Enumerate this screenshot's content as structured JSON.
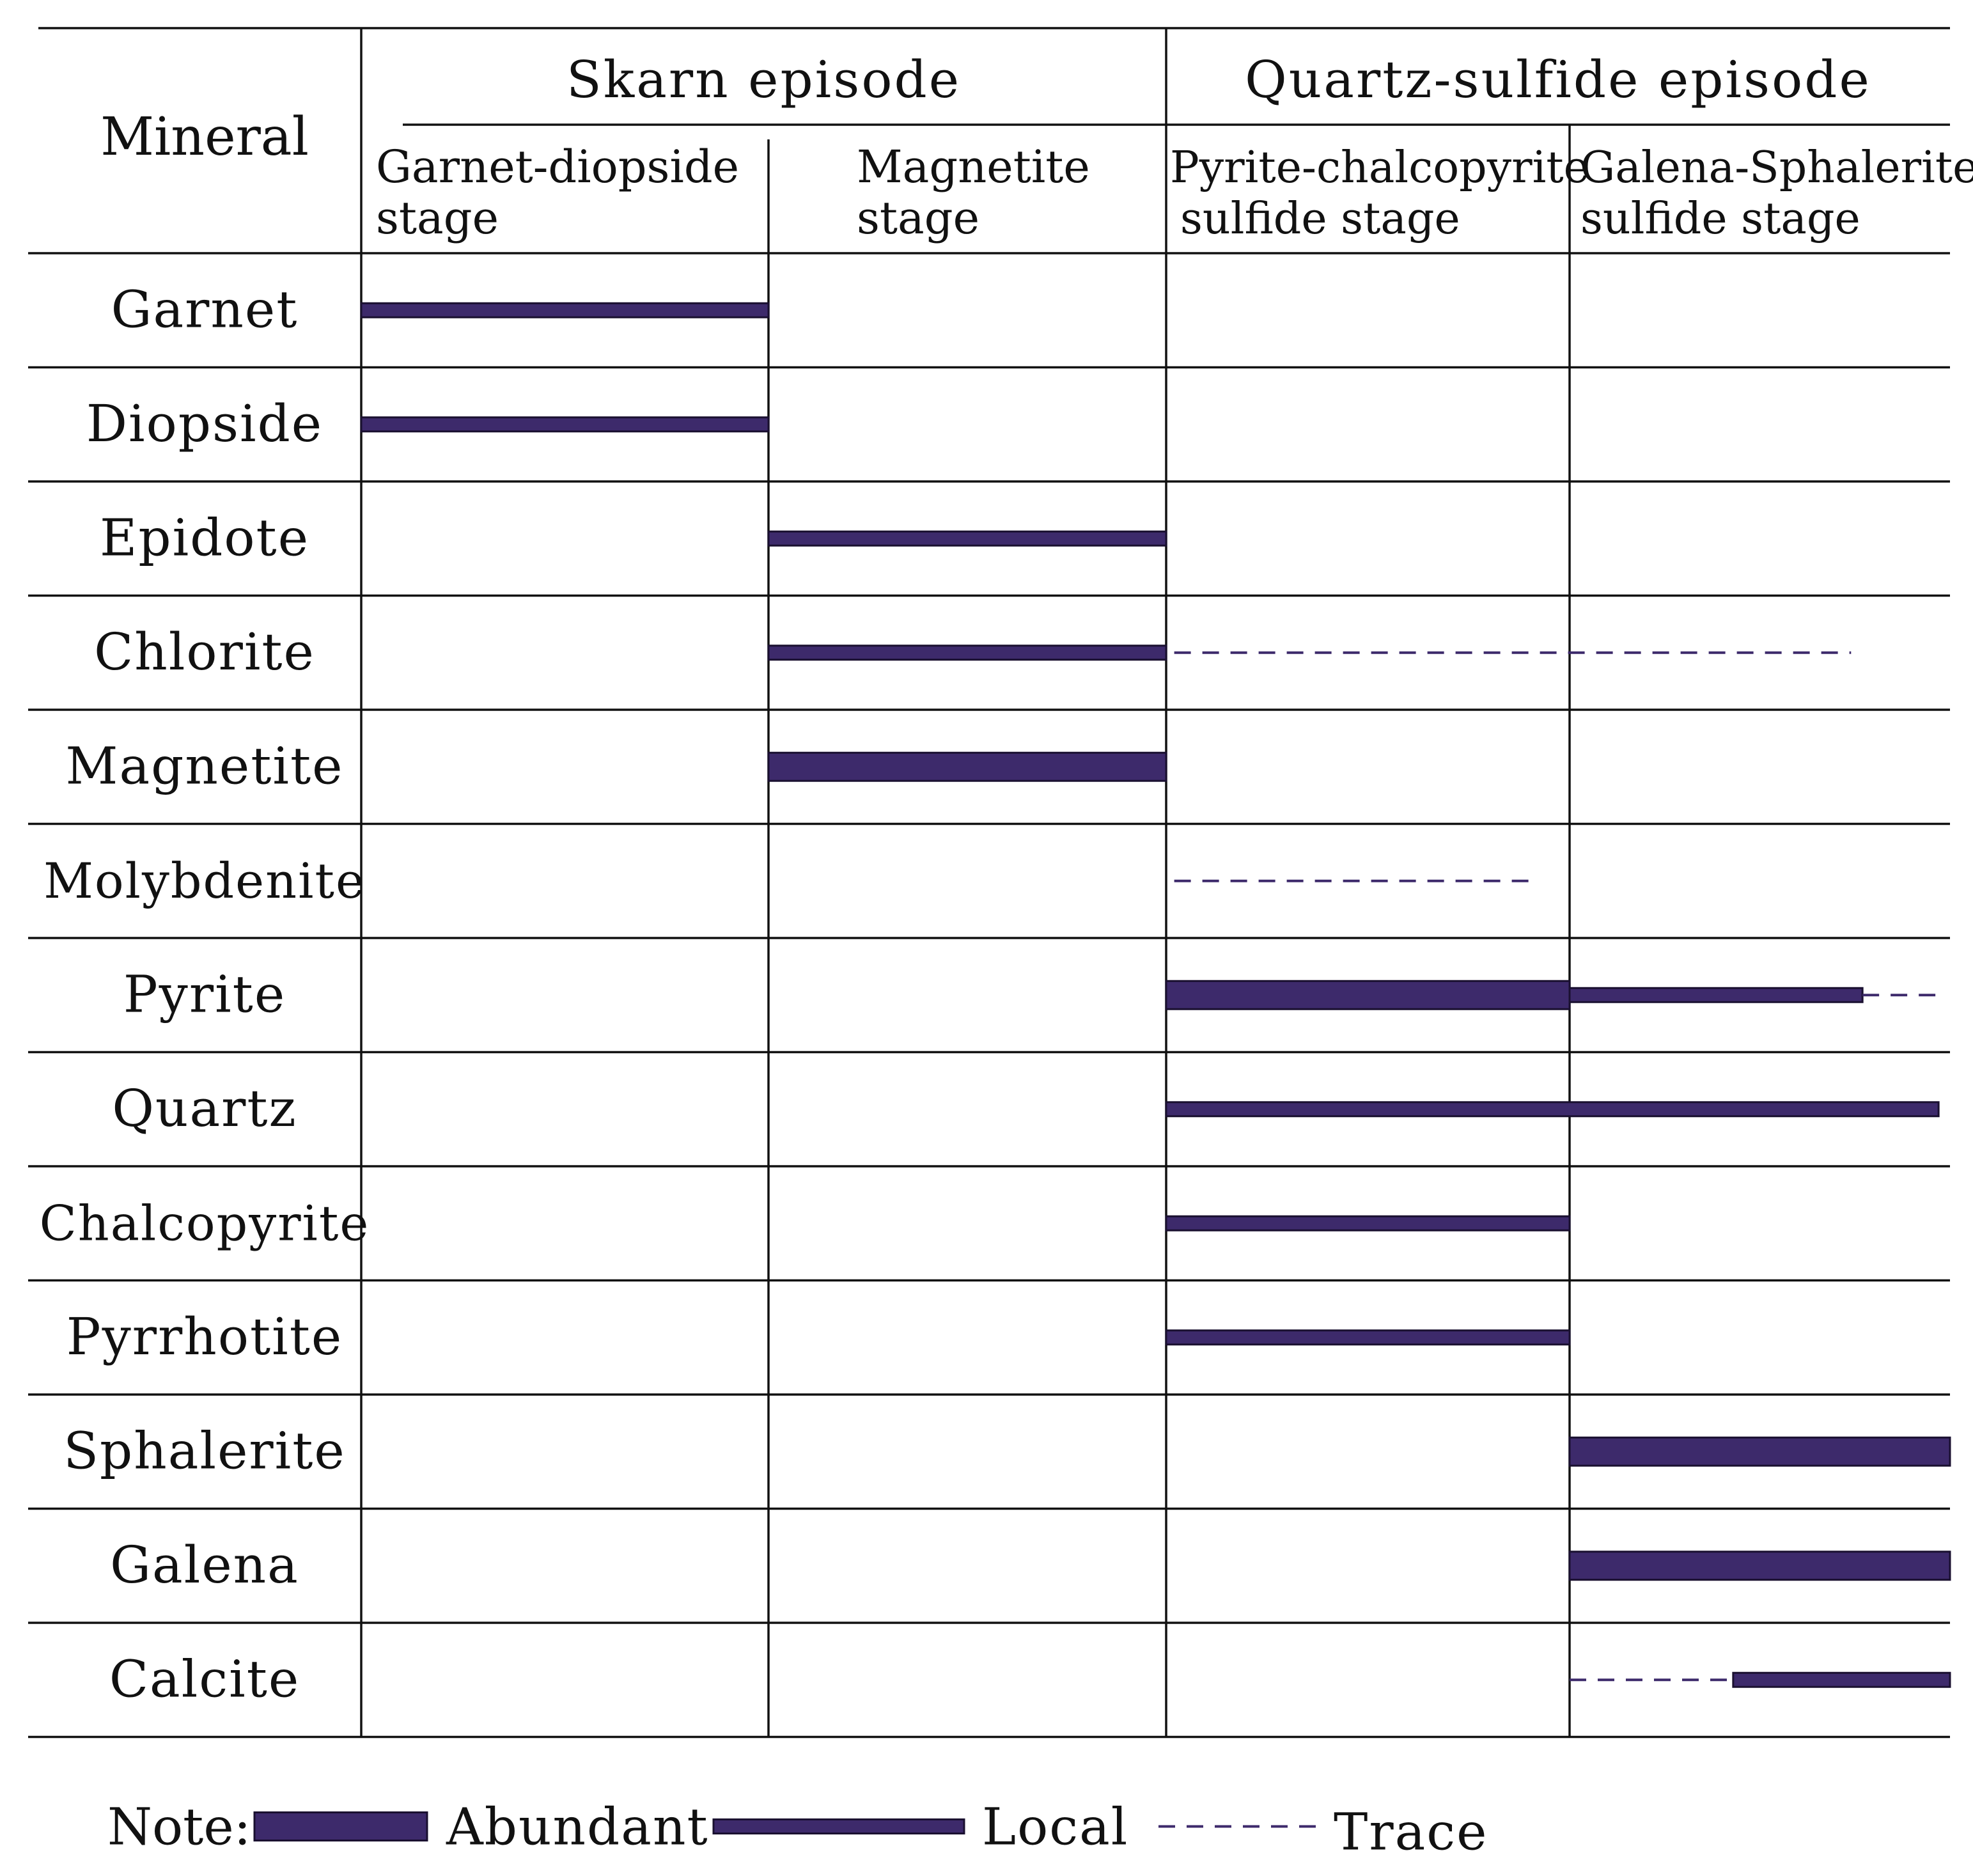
{
  "chart_data": {
    "type": "paragenetic_sequence",
    "title": "",
    "row_header": "Mineral",
    "colors": {
      "bar": "#3d2a6b",
      "line": "#111111",
      "trace": "#3d2a6b"
    },
    "episodes": [
      {
        "label": "Skarn episode",
        "stage_indices": [
          0,
          1
        ]
      },
      {
        "label": "Quartz-sulfide episode",
        "stage_indices": [
          2,
          3
        ]
      }
    ],
    "stages": [
      {
        "label_lines": [
          "Garnet-diopside",
          "stage"
        ]
      },
      {
        "label_lines": [
          "Magnetite",
          "stage"
        ]
      },
      {
        "label_lines": [
          "Pyrite-chalcopyrite",
          "sulfide stage"
        ]
      },
      {
        "label_lines": [
          "Galena-Sphalerite",
          "sulfide stage"
        ]
      }
    ],
    "x_units": "stage position (0 = start of first stage, 4 = end of last stage)",
    "minerals": [
      {
        "name": "Garnet",
        "segments": [
          {
            "start": 0,
            "end": 1,
            "abundance": "local"
          }
        ]
      },
      {
        "name": "Diopside",
        "segments": [
          {
            "start": 0,
            "end": 1,
            "abundance": "local"
          }
        ]
      },
      {
        "name": "Epidote",
        "segments": [
          {
            "start": 1,
            "end": 2,
            "abundance": "local"
          }
        ]
      },
      {
        "name": "Chlorite",
        "segments": [
          {
            "start": 1,
            "end": 2,
            "abundance": "local"
          },
          {
            "start": 2.02,
            "end": 3.74,
            "abundance": "trace"
          }
        ]
      },
      {
        "name": "Magnetite",
        "segments": [
          {
            "start": 1,
            "end": 2,
            "abundance": "abundant"
          }
        ]
      },
      {
        "name": "Molybdenite",
        "segments": [
          {
            "start": 2.02,
            "end": 2.91,
            "abundance": "trace"
          }
        ]
      },
      {
        "name": "Pyrite",
        "segments": [
          {
            "start": 2,
            "end": 3,
            "abundance": "abundant"
          },
          {
            "start": 3,
            "end": 3.77,
            "abundance": "local"
          },
          {
            "start": 3.77,
            "end": 3.97,
            "abundance": "trace"
          }
        ]
      },
      {
        "name": "Quartz",
        "segments": [
          {
            "start": 2,
            "end": 3.97,
            "abundance": "local"
          }
        ]
      },
      {
        "name": "Chalcopyrite",
        "segments": [
          {
            "start": 2,
            "end": 3,
            "abundance": "local"
          }
        ]
      },
      {
        "name": "Pyrrhotite",
        "segments": [
          {
            "start": 2,
            "end": 3,
            "abundance": "local"
          }
        ]
      },
      {
        "name": "Sphalerite",
        "segments": [
          {
            "start": 3,
            "end": 4,
            "abundance": "abundant"
          }
        ]
      },
      {
        "name": "Galena",
        "segments": [
          {
            "start": 3,
            "end": 4,
            "abundance": "abundant"
          }
        ]
      },
      {
        "name": "Calcite",
        "segments": [
          {
            "start": 3,
            "end": 3.43,
            "abundance": "trace"
          },
          {
            "start": 3.43,
            "end": 4,
            "abundance": "local"
          }
        ]
      }
    ],
    "legend": {
      "prefix": "Note:",
      "items": [
        {
          "key": "abundant",
          "label": "Abundant"
        },
        {
          "key": "local",
          "label": "Local"
        },
        {
          "key": "trace",
          "label": "Trace"
        }
      ]
    }
  }
}
